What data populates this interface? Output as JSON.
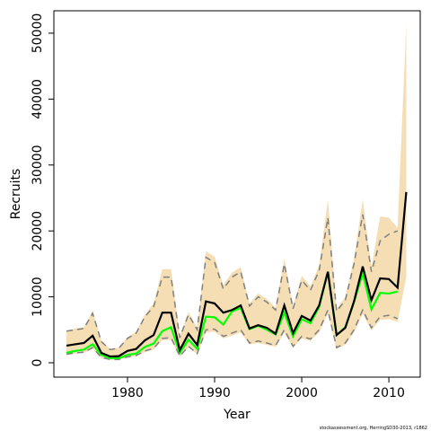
{
  "chart_data": {
    "type": "line",
    "x_label": "Year",
    "y_label": "Recruits",
    "footnote": "stockassessment.org, HerringSD30-2013, r1862",
    "x": [
      1973,
      1974,
      1975,
      1976,
      1977,
      1978,
      1979,
      1980,
      1981,
      1982,
      1983,
      1984,
      1985,
      1986,
      1987,
      1988,
      1989,
      1990,
      1991,
      1992,
      1993,
      1994,
      1995,
      1996,
      1997,
      1998,
      1999,
      2000,
      2001,
      2002,
      2003,
      2004,
      2005,
      2006,
      2007,
      2008,
      2009,
      2010,
      2011,
      2012
    ],
    "band": {
      "color": "#f5deb3",
      "upper": [
        4900,
        5200,
        5400,
        7900,
        3400,
        2100,
        2300,
        3900,
        4700,
        7300,
        9000,
        14200,
        14200,
        4000,
        7700,
        5300,
        16900,
        16100,
        11800,
        13700,
        14500,
        9000,
        10500,
        9700,
        8400,
        15800,
        8600,
        13200,
        11600,
        14800,
        24700,
        8200,
        10000,
        15800,
        24800,
        14500,
        22200,
        22000,
        20500,
        51500
      ],
      "lower": [
        1200,
        1400,
        1500,
        2100,
        700,
        450,
        450,
        800,
        1000,
        1600,
        2000,
        3400,
        3500,
        900,
        2300,
        1300,
        4600,
        4700,
        3700,
        4100,
        4600,
        2800,
        3000,
        2700,
        2400,
        4600,
        2300,
        3700,
        3300,
        4600,
        7400,
        2100,
        2700,
        4600,
        7400,
        4900,
        6500,
        6600,
        6200,
        13000
      ]
    },
    "series": [
      {
        "color": "#808080",
        "style": "dashed",
        "values": [
          4800,
          5000,
          5200,
          7500,
          3200,
          2000,
          2200,
          3700,
          4500,
          7000,
          8500,
          13000,
          13000,
          3800,
          7300,
          5000,
          16000,
          15200,
          11200,
          13000,
          13800,
          8600,
          10000,
          9200,
          8000,
          15000,
          8200,
          12500,
          11000,
          14000,
          22000,
          7800,
          9500,
          15000,
          22500,
          13800,
          18500,
          19500,
          20000,
          null
        ]
      },
      {
        "color": "#808080",
        "style": "dashed",
        "values": [
          1300,
          1500,
          1600,
          2300,
          800,
          500,
          500,
          900,
          1100,
          1800,
          2200,
          3700,
          3800,
          1000,
          2500,
          1400,
          5000,
          5100,
          4000,
          4500,
          5000,
          3000,
          3300,
          3000,
          2600,
          5000,
          2500,
          4000,
          3600,
          5000,
          8000,
          2300,
          3000,
          5000,
          8000,
          5300,
          7000,
          7200,
          6700,
          null
        ]
      },
      {
        "color": "#00ff00",
        "style": "solid",
        "values": [
          1500,
          1800,
          2000,
          2800,
          1200,
          700,
          700,
          1200,
          1400,
          2400,
          2900,
          4800,
          5400,
          1500,
          3500,
          2100,
          7000,
          6900,
          5800,
          7800,
          8300,
          5100,
          5600,
          5000,
          4300,
          7600,
          4000,
          6600,
          6000,
          8500,
          13800,
          4200,
          5400,
          9200,
          13600,
          8100,
          10600,
          10500,
          10800,
          null
        ]
      },
      {
        "color": "#000000",
        "style": "solid",
        "values": [
          2600,
          2800,
          3000,
          4100,
          1500,
          950,
          1000,
          1800,
          2100,
          3400,
          4200,
          7600,
          7600,
          1900,
          4400,
          2700,
          9300,
          9000,
          7600,
          8000,
          8700,
          5200,
          5700,
          5300,
          4400,
          8700,
          4500,
          7100,
          6400,
          8700,
          13800,
          4200,
          5300,
          9300,
          14600,
          9500,
          12800,
          12700,
          11400,
          25900
        ]
      }
    ],
    "xlim": [
      1971.55,
      2013.6
    ],
    "xticks": [
      1980,
      1990,
      2000,
      2010
    ],
    "ylim": [
      -2180,
      53400
    ],
    "yticks": [
      0,
      10000,
      20000,
      30000,
      40000,
      50000
    ]
  }
}
